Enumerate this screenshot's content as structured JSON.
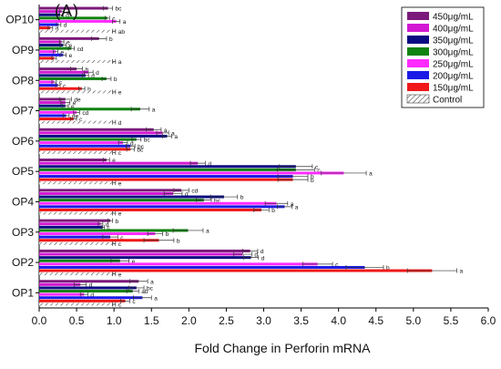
{
  "chart_data": {
    "type": "bar",
    "orientation": "horizontal",
    "panel_label": "(A)",
    "title": "",
    "xlabel": "Fold Change in Perforin mRNA",
    "ylabel": "",
    "xlim": [
      0,
      6.0
    ],
    "x_ticks": [
      "0.0",
      "0.5",
      "1.0",
      "1.5",
      "2.0",
      "2.5",
      "3.0",
      "3.5",
      "4.0",
      "4.5",
      "5.0",
      "5.5",
      "6.0"
    ],
    "categories": [
      "OP1",
      "OP2",
      "OP3",
      "OP4",
      "OP5",
      "OP6",
      "OP7",
      "OP8",
      "OP9",
      "OP10"
    ],
    "legend_position": "top-right",
    "grid": false,
    "series": [
      {
        "name": "450μg/mL",
        "color": "#7b1a7b",
        "hatch": false,
        "values": [
          1.33,
          2.82,
          0.95,
          1.9,
          0.9,
          1.53,
          0.35,
          0.5,
          0.8,
          0.92
        ],
        "errors": [
          0.12,
          0.1,
          0.03,
          0.1,
          0.04,
          0.1,
          0.08,
          0.08,
          0.1,
          0.06
        ],
        "letters": [
          "a",
          "d",
          "b",
          "cd",
          "e",
          "a",
          "de",
          "b",
          "b",
          "bc"
        ]
      },
      {
        "name": "400μg/mL",
        "color": "#d218d2",
        "hatch": false,
        "values": [
          0.55,
          2.72,
          0.82,
          1.79,
          2.12,
          1.65,
          0.35,
          0.66,
          0.3,
          0.3
        ],
        "errors": [
          0.08,
          0.12,
          0.03,
          0.12,
          0.1,
          0.08,
          0.06,
          0.06,
          0.03,
          0.03
        ],
        "letters": [
          "d",
          "d",
          "d",
          "d",
          "d",
          "a",
          "e",
          "d",
          "e",
          "e"
        ]
      },
      {
        "name": "350μg/mL",
        "color": "#0a0a82",
        "hatch": false,
        "values": [
          1.3,
          2.83,
          0.85,
          2.47,
          3.43,
          1.71,
          0.35,
          0.62,
          0.32,
          0.28
        ],
        "errors": [
          0.1,
          0.1,
          0.02,
          0.18,
          0.22,
          0.06,
          0.04,
          0.04,
          0.04,
          0.04
        ],
        "letters": [
          "bc",
          "d",
          "c",
          "b",
          "c",
          "a",
          "e",
          "d",
          "e",
          "d"
        ]
      },
      {
        "name": "300μg/mL",
        "color": "#108210",
        "hatch": false,
        "values": [
          1.25,
          1.08,
          1.99,
          2.2,
          3.43,
          1.3,
          1.35,
          0.9,
          0.43,
          0.91
        ],
        "errors": [
          0.08,
          0.12,
          0.2,
          0.1,
          0.25,
          0.06,
          0.12,
          0.06,
          0.04,
          0.03
        ],
        "letters": [
          "ab",
          "e",
          "a",
          "bc",
          "c",
          "bc",
          "a",
          "b",
          "cd",
          "c"
        ]
      },
      {
        "name": "250μg/mL",
        "color": "#ff2bff",
        "hatch": false,
        "values": [
          0.6,
          3.72,
          1.55,
          3.17,
          4.07,
          1.12,
          0.5,
          0.2,
          0.22,
          1.03
        ],
        "errors": [
          0.05,
          0.2,
          0.1,
          0.15,
          0.3,
          0.06,
          0.04,
          0.03,
          0.03,
          0.05
        ],
        "letters": [
          "d",
          "c",
          "b",
          "a",
          "a",
          "d",
          "cd",
          "c",
          "e",
          "a"
        ]
      },
      {
        "name": "200μg/mL",
        "color": "#1a1ae6",
        "hatch": false,
        "values": [
          1.38,
          4.35,
          0.95,
          3.28,
          3.39,
          1.22,
          0.36,
          0.25,
          0.32,
          0.26
        ],
        "errors": [
          0.12,
          0.25,
          0.1,
          0.1,
          0.2,
          0.06,
          0.04,
          0.03,
          0.04,
          0.03
        ],
        "letters": [
          "a",
          "b",
          "c",
          "a",
          "b",
          "bc",
          "de",
          "c",
          "e",
          "d"
        ]
      },
      {
        "name": "150μg/mL",
        "color": "#f01818",
        "hatch": false,
        "values": [
          1.15,
          5.25,
          1.6,
          2.97,
          3.39,
          1.22,
          0.46,
          0.57,
          0.2,
          0.15
        ],
        "errors": [
          0.06,
          0.33,
          0.2,
          0.1,
          0.2,
          0.05,
          0.04,
          0.04,
          0.03,
          0.03
        ],
        "letters": [
          "c",
          "a",
          "b",
          "b",
          "b",
          "bc",
          "c",
          "b",
          "",
          "d"
        ]
      },
      {
        "name": "Control",
        "color": "#555555",
        "hatch": true,
        "values": [
          1.0,
          1.0,
          1.0,
          1.0,
          1.0,
          1.0,
          1.0,
          1.0,
          1.0,
          1.0
        ],
        "errors": [
          0.02,
          0.02,
          0.02,
          0.02,
          0.02,
          0.02,
          0.02,
          0.02,
          0.02,
          0.02
        ],
        "letters": [
          "c",
          "e",
          "c",
          "e",
          "e",
          "c",
          "d",
          "e",
          "a",
          "ab"
        ]
      }
    ]
  }
}
